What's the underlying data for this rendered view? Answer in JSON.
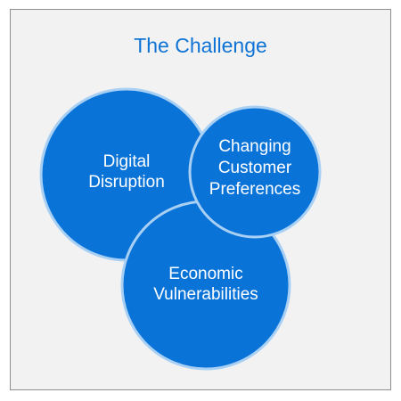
{
  "title": "The Challenge",
  "circles": [
    {
      "id": "digital",
      "lines": [
        "Digital",
        "Disruption"
      ]
    },
    {
      "id": "economic",
      "lines": [
        "Economic",
        "Vulnerabilities"
      ]
    },
    {
      "id": "customer",
      "lines": [
        "Changing",
        "Customer",
        "Preferences"
      ]
    }
  ],
  "colors": {
    "accent": "#0f73d6",
    "circle_fill": "#0a73d8",
    "circle_stroke": "#a8cff4",
    "frame_bg": "#f2f2f2",
    "frame_border": "#8f8f8f"
  }
}
